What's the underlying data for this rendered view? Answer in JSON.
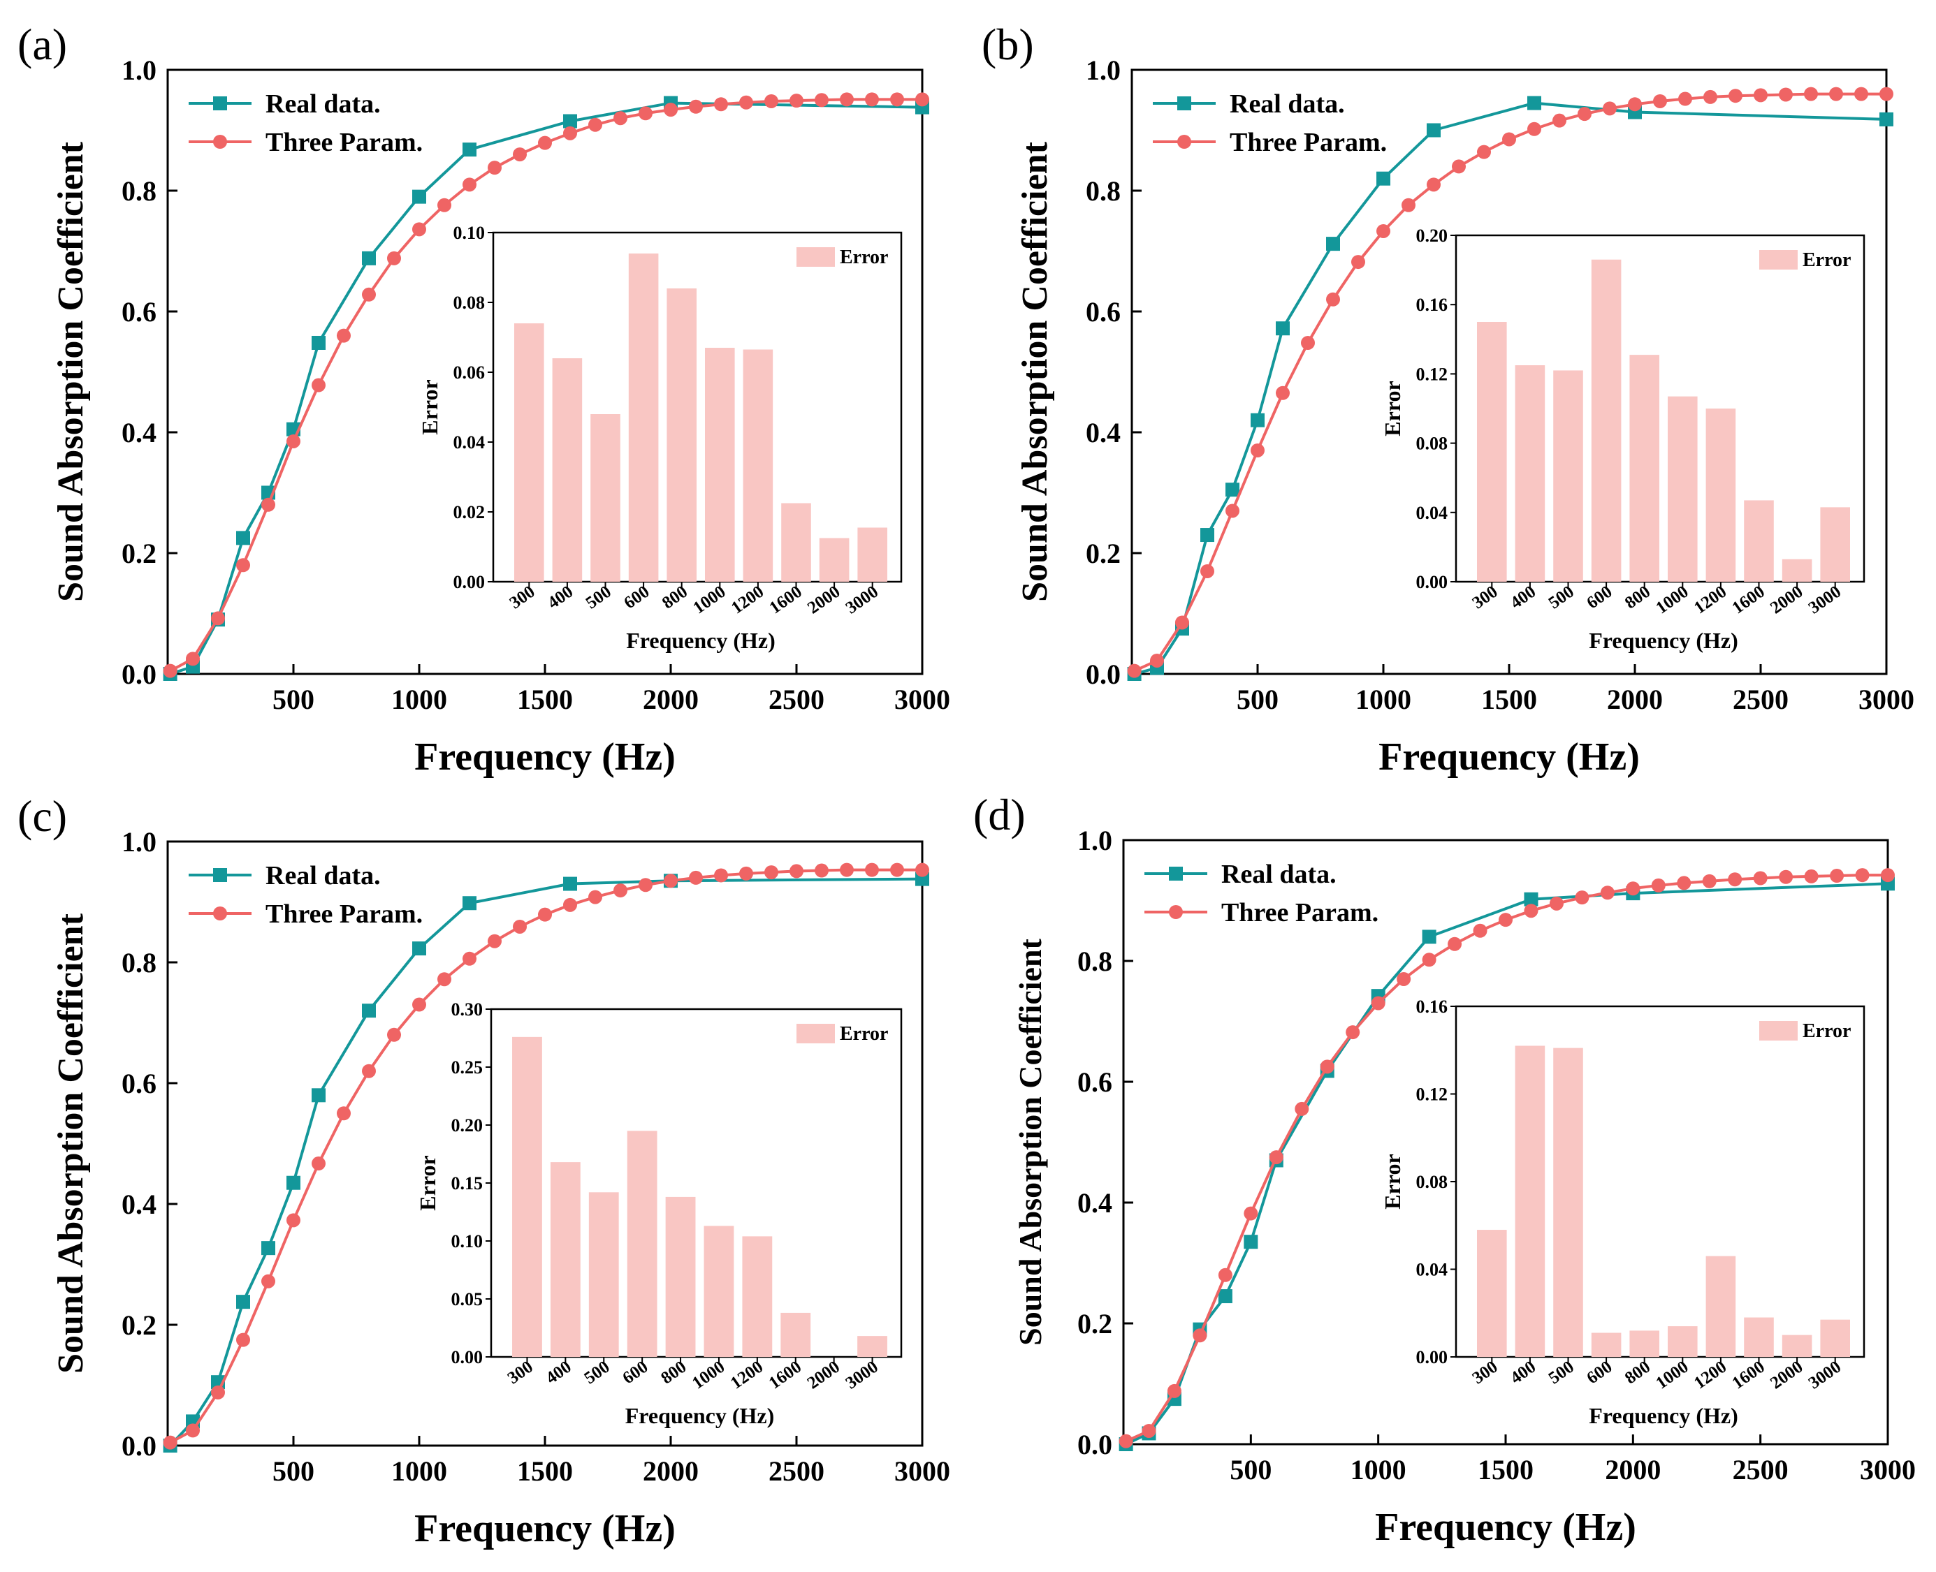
{
  "colors": {
    "real": "#13979a",
    "three": "#ef6464",
    "bar_fill": "#f9c6c3",
    "axis": "#000000"
  },
  "chart_data": [
    {
      "panel_label": "(a)",
      "type": "line",
      "xlabel": "Frequency (Hz)",
      "ylabel": "Sound Absorption Coefficient",
      "xlim": [
        0,
        3000
      ],
      "ylim": [
        0,
        1.0
      ],
      "xticks": [
        500,
        1000,
        1500,
        2000,
        2500,
        3000
      ],
      "yticks": [
        0.0,
        0.2,
        0.4,
        0.6,
        0.8,
        1.0
      ],
      "legend": "top-left",
      "series": [
        {
          "name": "Real data.",
          "marker": "square",
          "x": [
            10,
            100,
            200,
            300,
            400,
            500,
            600,
            800,
            1000,
            1200,
            1600,
            2000,
            3000
          ],
          "y": [
            0.0,
            0.012,
            0.09,
            0.225,
            0.3,
            0.405,
            0.548,
            0.688,
            0.79,
            0.868,
            0.915,
            0.945,
            0.938
          ]
        },
        {
          "name": "Three Param.",
          "marker": "circle",
          "x": [
            10,
            100,
            200,
            300,
            400,
            500,
            600,
            700,
            800,
            900,
            1000,
            1100,
            1200,
            1300,
            1400,
            1500,
            1600,
            1700,
            1800,
            1900,
            2000,
            2100,
            2200,
            2300,
            2400,
            2500,
            2600,
            2700,
            2800,
            2900,
            3000
          ],
          "y": [
            0.005,
            0.025,
            0.092,
            0.18,
            0.28,
            0.385,
            0.478,
            0.56,
            0.628,
            0.688,
            0.736,
            0.776,
            0.81,
            0.838,
            0.86,
            0.879,
            0.895,
            0.909,
            0.92,
            0.928,
            0.934,
            0.939,
            0.943,
            0.946,
            0.948,
            0.949,
            0.95,
            0.951,
            0.951,
            0.951,
            0.951
          ]
        }
      ],
      "inset": {
        "type": "bar",
        "xlabel": "Frequency (Hz)",
        "ylabel": "Error",
        "legend": "Error",
        "categories": [
          "300",
          "400",
          "500",
          "600",
          "800",
          "1000",
          "1200",
          "1600",
          "2000",
          "3000"
        ],
        "values": [
          0.074,
          0.064,
          0.048,
          0.094,
          0.084,
          0.067,
          0.0665,
          0.0225,
          0.0125,
          0.0155
        ],
        "ylim": [
          0,
          0.1
        ],
        "yticks": [
          "0.00",
          "0.02",
          "0.04",
          "0.06",
          "0.08",
          "0.10"
        ]
      }
    },
    {
      "panel_label": "(b)",
      "type": "line",
      "xlabel": "Frequency (Hz)",
      "ylabel": "Sound Absorption Coefficient",
      "xlim": [
        0,
        3000
      ],
      "ylim": [
        0,
        1.0
      ],
      "xticks": [
        500,
        1000,
        1500,
        2000,
        2500,
        3000
      ],
      "yticks": [
        0.0,
        0.2,
        0.4,
        0.6,
        0.8,
        1.0
      ],
      "legend": "top-left",
      "series": [
        {
          "name": "Real data.",
          "marker": "square",
          "x": [
            10,
            100,
            200,
            300,
            400,
            500,
            600,
            800,
            1000,
            1200,
            1600,
            2000,
            3000
          ],
          "y": [
            0.0,
            0.01,
            0.075,
            0.23,
            0.305,
            0.42,
            0.572,
            0.712,
            0.82,
            0.9,
            0.945,
            0.93,
            0.918
          ]
        },
        {
          "name": "Three Param.",
          "marker": "circle",
          "x": [
            10,
            100,
            200,
            300,
            400,
            500,
            600,
            700,
            800,
            900,
            1000,
            1100,
            1200,
            1300,
            1400,
            1500,
            1600,
            1700,
            1800,
            1900,
            2000,
            2100,
            2200,
            2300,
            2400,
            2500,
            2600,
            2700,
            2800,
            2900,
            3000
          ],
          "y": [
            0.005,
            0.022,
            0.085,
            0.17,
            0.27,
            0.37,
            0.465,
            0.548,
            0.62,
            0.682,
            0.733,
            0.776,
            0.81,
            0.84,
            0.864,
            0.885,
            0.902,
            0.916,
            0.927,
            0.936,
            0.943,
            0.948,
            0.952,
            0.955,
            0.957,
            0.958,
            0.959,
            0.96,
            0.96,
            0.96,
            0.96
          ]
        }
      ],
      "inset": {
        "type": "bar",
        "xlabel": "Frequency (Hz)",
        "ylabel": "Error",
        "legend": "Error",
        "categories": [
          "300",
          "400",
          "500",
          "600",
          "800",
          "1000",
          "1200",
          "1600",
          "2000",
          "3000"
        ],
        "values": [
          0.15,
          0.125,
          0.122,
          0.186,
          0.131,
          0.107,
          0.1,
          0.047,
          0.013,
          0.043
        ],
        "ylim": [
          0,
          0.2
        ],
        "yticks": [
          "0.00",
          "0.04",
          "0.08",
          "0.12",
          "0.16",
          "0.20"
        ]
      }
    },
    {
      "panel_label": "(c)",
      "type": "line",
      "xlabel": "Frequency (Hz)",
      "ylabel": "Sound Absorption Coefficient",
      "xlim": [
        0,
        3000
      ],
      "ylim": [
        0,
        1.0
      ],
      "xticks": [
        500,
        1000,
        1500,
        2000,
        2500,
        3000
      ],
      "yticks": [
        0.0,
        0.2,
        0.4,
        0.6,
        0.8,
        1.0
      ],
      "legend": "top-left",
      "series": [
        {
          "name": "Real data.",
          "marker": "square",
          "x": [
            10,
            100,
            200,
            300,
            400,
            500,
            600,
            800,
            1000,
            1200,
            1600,
            2000,
            3000
          ],
          "y": [
            0.0,
            0.04,
            0.105,
            0.238,
            0.327,
            0.435,
            0.58,
            0.72,
            0.823,
            0.898,
            0.93,
            0.935,
            0.938
          ]
        },
        {
          "name": "Three Param.",
          "marker": "circle",
          "x": [
            10,
            100,
            200,
            300,
            400,
            500,
            600,
            700,
            800,
            900,
            1000,
            1100,
            1200,
            1300,
            1400,
            1500,
            1600,
            1700,
            1800,
            1900,
            2000,
            2100,
            2200,
            2300,
            2400,
            2500,
            2600,
            2700,
            2800,
            2900,
            3000
          ],
          "y": [
            0.005,
            0.025,
            0.088,
            0.175,
            0.272,
            0.373,
            0.467,
            0.55,
            0.62,
            0.68,
            0.73,
            0.772,
            0.806,
            0.835,
            0.859,
            0.879,
            0.895,
            0.908,
            0.919,
            0.928,
            0.935,
            0.94,
            0.944,
            0.947,
            0.949,
            0.951,
            0.952,
            0.953,
            0.953,
            0.953,
            0.953
          ]
        }
      ],
      "inset": {
        "type": "bar",
        "xlabel": "Frequency (Hz)",
        "ylabel": "Error",
        "legend": "Error",
        "categories": [
          "300",
          "400",
          "500",
          "600",
          "800",
          "1000",
          "1200",
          "1600",
          "2000",
          "3000"
        ],
        "values": [
          0.276,
          0.168,
          0.142,
          0.195,
          0.138,
          0.113,
          0.104,
          0.038,
          0.0,
          0.018
        ],
        "ylim": [
          0,
          0.3
        ],
        "yticks": [
          "0.00",
          "0.05",
          "0.10",
          "0.15",
          "0.20",
          "0.25",
          "0.30"
        ]
      }
    },
    {
      "panel_label": "(d)",
      "type": "line",
      "xlabel": "Frequency (Hz)",
      "ylabel": "Sound Absorption Coefficient",
      "xlim": [
        0,
        3000
      ],
      "ylim": [
        0,
        1.0
      ],
      "xticks": [
        500,
        1000,
        1500,
        2000,
        2500,
        3000
      ],
      "yticks": [
        0.0,
        0.2,
        0.4,
        0.6,
        0.8,
        1.0
      ],
      "legend": "top-left",
      "series": [
        {
          "name": "Real data.",
          "marker": "square",
          "x": [
            10,
            100,
            200,
            300,
            400,
            500,
            600,
            800,
            1000,
            1200,
            1600,
            2000,
            3000
          ],
          "y": [
            0.0,
            0.018,
            0.075,
            0.19,
            0.245,
            0.335,
            0.47,
            0.618,
            0.742,
            0.84,
            0.902,
            0.912,
            0.928
          ]
        },
        {
          "name": "Three Param.",
          "marker": "circle",
          "x": [
            10,
            100,
            200,
            300,
            400,
            500,
            600,
            700,
            800,
            900,
            1000,
            1100,
            1200,
            1300,
            1400,
            1500,
            1600,
            1700,
            1800,
            1900,
            2000,
            2100,
            2200,
            2300,
            2400,
            2500,
            2600,
            2700,
            2800,
            2900,
            3000
          ],
          "y": [
            0.005,
            0.022,
            0.088,
            0.18,
            0.28,
            0.382,
            0.475,
            0.555,
            0.625,
            0.682,
            0.73,
            0.77,
            0.802,
            0.828,
            0.85,
            0.868,
            0.883,
            0.895,
            0.905,
            0.913,
            0.92,
            0.925,
            0.929,
            0.932,
            0.935,
            0.937,
            0.939,
            0.94,
            0.941,
            0.942,
            0.942
          ]
        }
      ],
      "inset": {
        "type": "bar",
        "xlabel": "Frequency (Hz)",
        "ylabel": "Error",
        "legend": "Error",
        "categories": [
          "300",
          "400",
          "500",
          "600",
          "800",
          "1000",
          "1200",
          "1600",
          "2000",
          "3000"
        ],
        "values": [
          0.058,
          0.142,
          0.141,
          0.011,
          0.012,
          0.014,
          0.046,
          0.018,
          0.01,
          0.017
        ],
        "ylim": [
          0,
          0.16
        ],
        "yticks": [
          "0.00",
          "0.04",
          "0.08",
          "0.12",
          "0.16"
        ]
      }
    }
  ]
}
